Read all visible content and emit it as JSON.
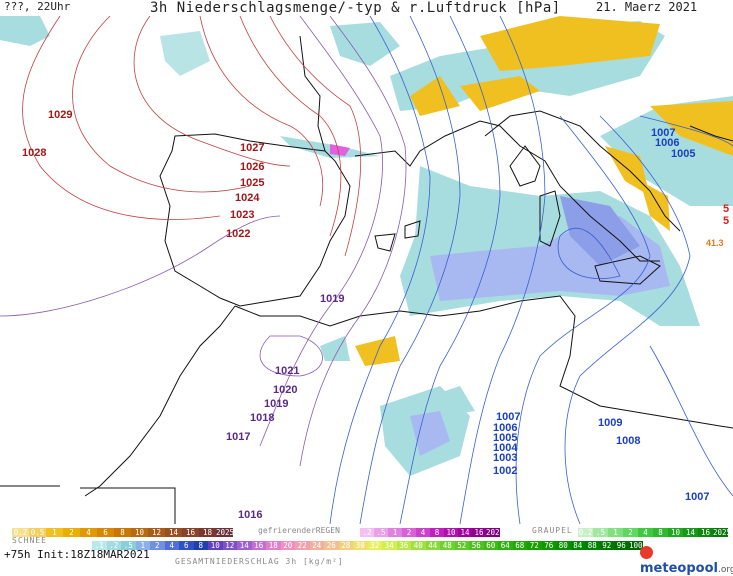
{
  "header": {
    "left": "???, 22Uhr",
    "title": "3h Niederschlagsmenge/-typ & r.Luftdruck [hPa]",
    "date": "21. Maerz 2021"
  },
  "map": {
    "isobar_labels_dark": [
      "1029",
      "1028",
      "1027",
      "1026",
      "1025",
      "1024",
      "1023",
      "1022"
    ],
    "isobar_labels_purple": [
      "1019",
      "1021",
      "1020",
      "1019",
      "1018",
      "1017",
      "1016"
    ],
    "isobar_labels_blue": [
      "1007",
      "1006",
      "1005",
      "1004",
      "1003",
      "1002",
      "1009",
      "1008",
      "1007",
      "1007",
      "1006",
      "1005"
    ],
    "side_values": [
      "5",
      "5",
      "41.3"
    ]
  },
  "legend": {
    "schnee_label": "SCHNEE",
    "regen_label": "gefrierenderREGEN",
    "graupel_label": "GRAUPEL",
    "total_label": "GESAMTNIEDERSCHLAG 3h [kg/m²]",
    "schnee_values": [
      "0.2",
      "0.5",
      "1",
      "2",
      "4",
      "6",
      "8",
      "10",
      "12",
      "14",
      "16",
      "18",
      "2025+"
    ],
    "regen_values": [
      ".2",
      ".5",
      "1",
      "2",
      "4",
      "8",
      "10",
      "14",
      "16",
      "2025+"
    ],
    "graupel_values": [
      "0.2",
      ".5",
      "1",
      "2",
      "4",
      "8",
      "10",
      "14",
      "16",
      "2025+"
    ],
    "total_values": [
      ".1",
      ".2",
      ".5",
      "1",
      "2",
      "4",
      "6",
      "8",
      "10",
      "12",
      "14",
      "16",
      "18",
      "20",
      "22",
      "24",
      "26",
      "28",
      "30",
      "32",
      "34",
      "36",
      "40",
      "44",
      "48",
      "52",
      "56",
      "60",
      "64",
      "68",
      "72",
      "76",
      "80",
      "84",
      "88",
      "92",
      "96",
      "100"
    ]
  },
  "footer": {
    "run": "+75h Init:18Z18MAR2021",
    "brand_main": "meteo",
    "brand_sub": "pool",
    "brand_tld": ".org"
  },
  "colors": {
    "isobar_high": "#c04040",
    "isobar_mid": "#8a5ab0",
    "isobar_low": "#3a5fd0",
    "rain_light": "#a8dde0",
    "rain_mid": "#a8b8f0",
    "snow_yellow": "#f0c020",
    "freezing_magenta": "#e060e0"
  }
}
